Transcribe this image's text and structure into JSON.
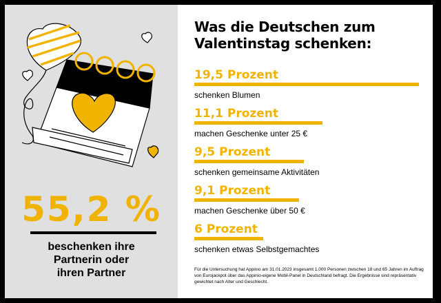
{
  "headline": {
    "percent": "55,2 %",
    "description": "beschenken ihre\nPartnerin oder\nihren Partner"
  },
  "title": "Was die Deutschen zum\nValentinstag schenken:",
  "colors": {
    "accent": "#f0b400",
    "panel": "#e0e0e0",
    "frame": "#000000"
  },
  "chart_data": {
    "type": "bar",
    "orientation": "horizontal",
    "categories": [
      "schenken Blumen",
      "machen Geschenke unter 25 €",
      "schenken gemeinsame Aktivitäten",
      "machen Geschenke über 50 €",
      "schenken etwas Selbstgemachtes"
    ],
    "values": [
      19.5,
      11.1,
      9.5,
      9.1,
      6
    ],
    "value_labels": [
      "19,5 Prozent",
      "11,1 Prozent",
      "9,5 Prozent",
      "9,1 Prozent",
      "6 Prozent"
    ],
    "title": "Was die Deutschen zum Valentinstag schenken:"
  },
  "footnote": "Für die Untersuchung hat Appinio am 31.01.2023 insgesamt 1.000 Personen zwischen 18 und 65 Jahren im Auftrag von Eurojackpot über das Appinio-eigene Mobil-Panel in Deutschland befragt. Die Ergebnisse sind repräsentativ gewichtet nach Alter und Geschlecht."
}
